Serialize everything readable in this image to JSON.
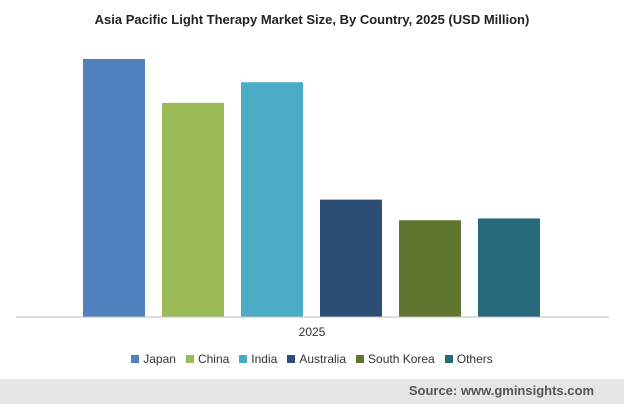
{
  "chart_data": {
    "type": "bar",
    "title": "Asia Pacific Light Therapy Market Size, By Country, 2025 (USD Million)",
    "categories": [
      "2025"
    ],
    "series": [
      {
        "name": "Japan",
        "values": [
          100
        ],
        "color": "#4f81bd"
      },
      {
        "name": "China",
        "values": [
          83
        ],
        "color": "#9bbb59"
      },
      {
        "name": "India",
        "values": [
          91
        ],
        "color": "#4bacc6"
      },
      {
        "name": "Australia",
        "values": [
          45.5
        ],
        "color": "#2c4d75"
      },
      {
        "name": "South Korea",
        "values": [
          37.5
        ],
        "color": "#5f7530"
      },
      {
        "name": "Others",
        "values": [
          38.2
        ],
        "color": "#276a7c"
      }
    ],
    "ylim": [
      0,
      100
    ],
    "legend_position": "bottom",
    "grid": false
  },
  "source": {
    "text": "Source: www.gminsights.com"
  }
}
